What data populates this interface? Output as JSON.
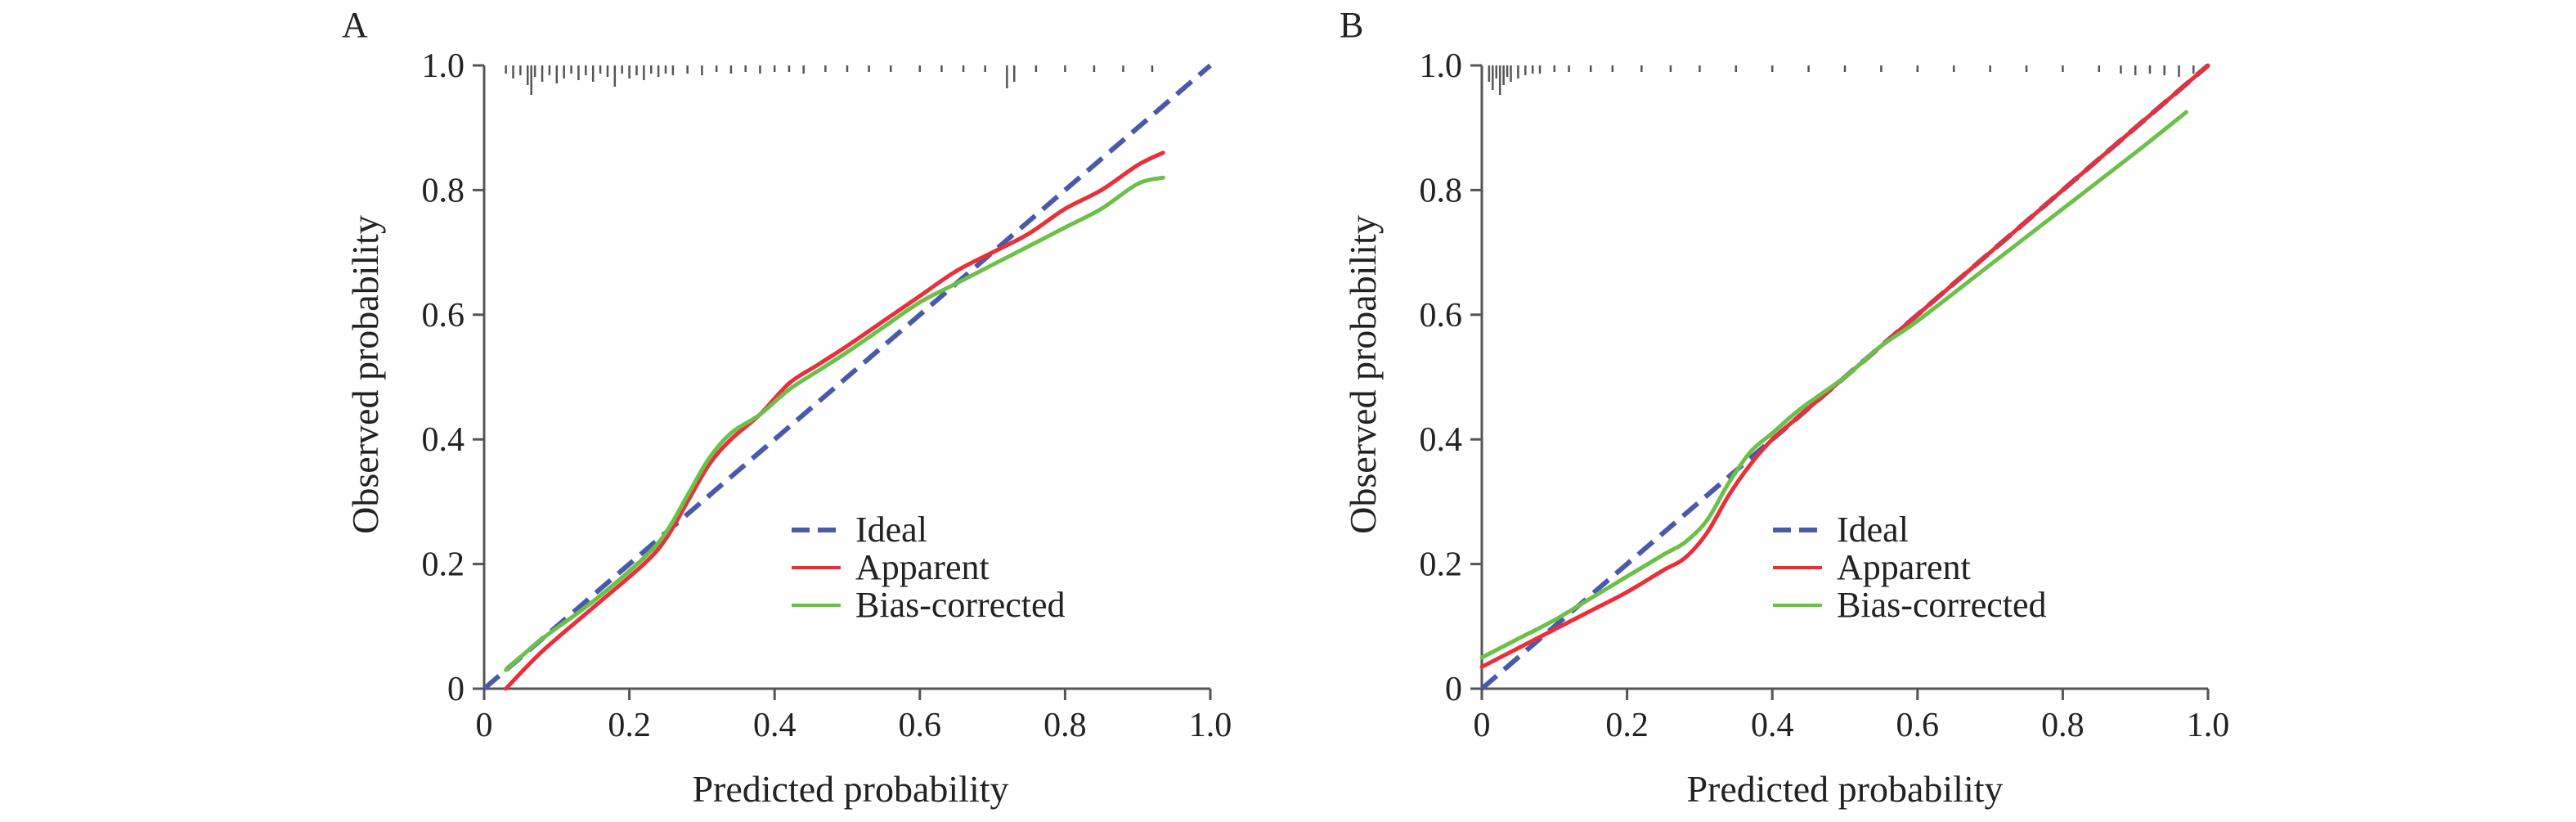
{
  "chart_data": [
    {
      "panel_label": "A",
      "type": "line",
      "xlabel": "Predicted probability",
      "ylabel": "Observed probability",
      "xlim": [
        0,
        1
      ],
      "ylim": [
        0,
        1
      ],
      "xticks": [
        0,
        0.2,
        0.4,
        0.6,
        0.8,
        1.0
      ],
      "xtick_labels": [
        "0",
        "0.2",
        "0.4",
        "0.6",
        "0.8",
        "1.0"
      ],
      "yticks": [
        0,
        0.2,
        0.4,
        0.6,
        0.8,
        1.0
      ],
      "ytick_labels": [
        "0",
        "0.2",
        "0.4",
        "0.6",
        "0.8",
        "1.0"
      ],
      "grid": false,
      "legend_position": "lower-right",
      "rug": {
        "x": [
          0.03,
          0.04,
          0.05,
          0.06,
          0.065,
          0.07,
          0.08,
          0.09,
          0.1,
          0.11,
          0.12,
          0.13,
          0.14,
          0.15,
          0.16,
          0.17,
          0.18,
          0.19,
          0.2,
          0.21,
          0.22,
          0.23,
          0.24,
          0.25,
          0.26,
          0.28,
          0.3,
          0.32,
          0.34,
          0.36,
          0.38,
          0.4,
          0.42,
          0.44,
          0.47,
          0.5,
          0.53,
          0.56,
          0.6,
          0.63,
          0.66,
          0.69,
          0.72,
          0.73,
          0.76,
          0.8,
          0.84,
          0.88,
          0.92
        ],
        "length": [
          0.5,
          0.8,
          0.6,
          1.2,
          1.8,
          0.7,
          1.0,
          0.6,
          1.1,
          0.8,
          0.5,
          0.9,
          0.6,
          1.0,
          0.5,
          0.7,
          1.3,
          0.5,
          0.8,
          0.6,
          0.9,
          0.5,
          0.7,
          0.5,
          0.6,
          0.5,
          0.6,
          0.4,
          0.5,
          0.4,
          0.5,
          0.4,
          0.4,
          0.5,
          0.4,
          0.4,
          0.4,
          0.4,
          0.4,
          0.4,
          0.4,
          0.4,
          1.4,
          1.0,
          0.4,
          0.4,
          0.4,
          0.4,
          0.4
        ]
      },
      "series": [
        {
          "name": "Ideal",
          "color": "#4a5aa8",
          "style": "dashed",
          "x": [
            0,
            1
          ],
          "y": [
            0,
            1
          ]
        },
        {
          "name": "Apparent",
          "color": "#e8303a",
          "style": "solid",
          "x": [
            0.03,
            0.08,
            0.15,
            0.22,
            0.25,
            0.28,
            0.31,
            0.34,
            0.38,
            0.42,
            0.46,
            0.5,
            0.55,
            0.6,
            0.65,
            0.7,
            0.75,
            0.8,
            0.85,
            0.9,
            0.935
          ],
          "y": [
            0.0,
            0.06,
            0.13,
            0.2,
            0.24,
            0.3,
            0.36,
            0.4,
            0.44,
            0.49,
            0.52,
            0.55,
            0.59,
            0.63,
            0.67,
            0.7,
            0.73,
            0.77,
            0.8,
            0.84,
            0.86
          ]
        },
        {
          "name": "Bias-corrected",
          "color": "#6cc04a",
          "style": "solid",
          "x": [
            0.03,
            0.08,
            0.15,
            0.22,
            0.25,
            0.28,
            0.31,
            0.34,
            0.38,
            0.42,
            0.46,
            0.5,
            0.55,
            0.6,
            0.65,
            0.7,
            0.75,
            0.8,
            0.85,
            0.9,
            0.935
          ],
          "y": [
            0.03,
            0.08,
            0.14,
            0.21,
            0.25,
            0.31,
            0.37,
            0.41,
            0.44,
            0.48,
            0.51,
            0.54,
            0.58,
            0.62,
            0.65,
            0.68,
            0.71,
            0.74,
            0.77,
            0.81,
            0.82
          ]
        }
      ]
    },
    {
      "panel_label": "B",
      "type": "line",
      "xlabel": "Predicted probability",
      "ylabel": "Observed probability",
      "xlim": [
        0,
        1
      ],
      "ylim": [
        0,
        1
      ],
      "xticks": [
        0,
        0.2,
        0.4,
        0.6,
        0.8,
        1.0
      ],
      "xtick_labels": [
        "0",
        "0.2",
        "0.4",
        "0.6",
        "0.8",
        "1.0"
      ],
      "yticks": [
        0,
        0.2,
        0.4,
        0.6,
        0.8,
        1.0
      ],
      "ytick_labels": [
        "0",
        "0.2",
        "0.4",
        "0.6",
        "0.8",
        "1.0"
      ],
      "grid": false,
      "legend_position": "lower-right",
      "rug": {
        "x": [
          0.01,
          0.015,
          0.02,
          0.025,
          0.03,
          0.035,
          0.04,
          0.05,
          0.06,
          0.07,
          0.08,
          0.1,
          0.12,
          0.15,
          0.18,
          0.22,
          0.26,
          0.3,
          0.35,
          0.4,
          0.45,
          0.5,
          0.55,
          0.6,
          0.65,
          0.7,
          0.75,
          0.8,
          0.85,
          0.88,
          0.9,
          0.92,
          0.94,
          0.96,
          0.98
        ],
        "length": [
          1.0,
          1.5,
          0.8,
          1.8,
          1.2,
          0.7,
          1.0,
          0.8,
          0.6,
          0.5,
          0.5,
          0.4,
          0.4,
          0.4,
          0.4,
          0.4,
          0.4,
          0.4,
          0.4,
          0.4,
          0.4,
          0.4,
          0.4,
          0.4,
          0.4,
          0.4,
          0.4,
          0.4,
          0.4,
          0.5,
          0.6,
          0.5,
          0.6,
          0.7,
          0.5
        ]
      },
      "series": [
        {
          "name": "Ideal",
          "color": "#4a5aa8",
          "style": "dashed",
          "x": [
            0,
            1
          ],
          "y": [
            0,
            1
          ]
        },
        {
          "name": "Apparent",
          "color": "#e8303a",
          "style": "solid",
          "x": [
            0.0,
            0.05,
            0.1,
            0.15,
            0.2,
            0.25,
            0.28,
            0.31,
            0.34,
            0.37,
            0.4,
            0.44,
            0.5,
            0.55,
            0.6,
            0.7,
            0.8,
            0.9,
            1.0
          ],
          "y": [
            0.035,
            0.065,
            0.095,
            0.125,
            0.155,
            0.19,
            0.21,
            0.25,
            0.31,
            0.36,
            0.4,
            0.44,
            0.5,
            0.55,
            0.6,
            0.7,
            0.8,
            0.9,
            1.0
          ]
        },
        {
          "name": "Bias-corrected",
          "color": "#6cc04a",
          "style": "solid",
          "x": [
            0.0,
            0.05,
            0.1,
            0.15,
            0.2,
            0.25,
            0.28,
            0.31,
            0.34,
            0.37,
            0.4,
            0.44,
            0.5,
            0.55,
            0.6,
            0.7,
            0.8,
            0.9,
            0.97
          ],
          "y": [
            0.05,
            0.08,
            0.11,
            0.145,
            0.18,
            0.215,
            0.235,
            0.27,
            0.33,
            0.38,
            0.41,
            0.45,
            0.5,
            0.55,
            0.59,
            0.68,
            0.77,
            0.86,
            0.925
          ]
        }
      ]
    }
  ]
}
